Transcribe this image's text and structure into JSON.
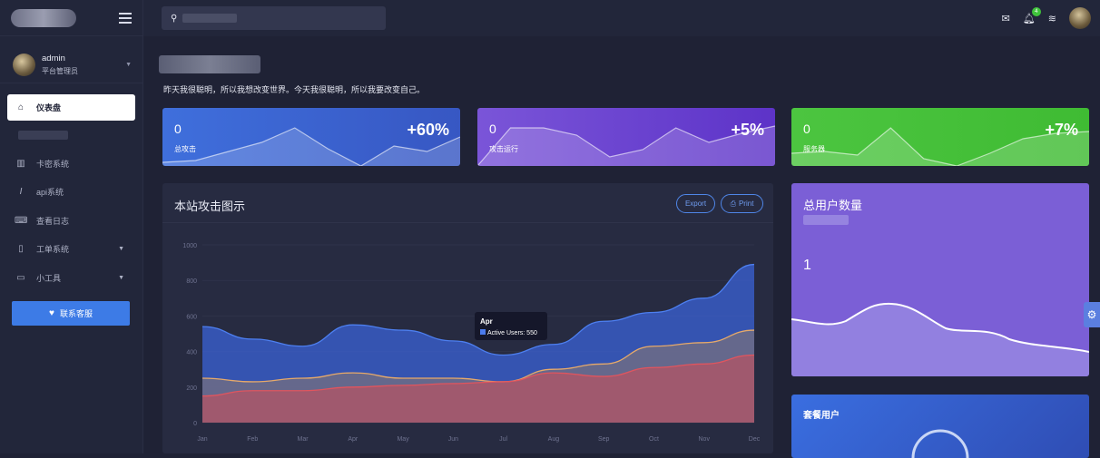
{
  "sidebar": {
    "user": {
      "name": "admin",
      "role": "平台管理员"
    },
    "items": [
      {
        "label": "仪表盘",
        "icon": "home-icon"
      },
      {
        "label": "卡密系统",
        "icon": "bar-chart-icon"
      },
      {
        "label": "api系统",
        "icon": "italic-icon"
      },
      {
        "label": "查看日志",
        "icon": "keyboard-icon"
      },
      {
        "label": "工单系统",
        "icon": "tablet-icon"
      },
      {
        "label": "小工具",
        "icon": "monitor-icon"
      }
    ],
    "contact_label": "联系客服"
  },
  "topbar": {
    "notif_count": "4"
  },
  "main": {
    "motto": "昨天我很聪明，所以我想改变世界。今天我很聪明，所以我要改变自己。",
    "cards": [
      {
        "value": "0",
        "label": "总攻击",
        "pct": "+60%",
        "color": "#3f6fdc"
      },
      {
        "value": "0",
        "label": "攻击运行",
        "pct": "+5%",
        "color": "#6a44cf"
      },
      {
        "value": "0",
        "label": "服务器",
        "pct": "+7%",
        "color": "#47c13d"
      }
    ],
    "chart_title": "本站攻击图示",
    "export_label": "Export",
    "print_label": "Print",
    "user_card": {
      "title": "总用户数量",
      "value": "1"
    },
    "package_card": {
      "title": "套餐用户"
    }
  },
  "chart_data": {
    "type": "area",
    "categories": [
      "Jan",
      "Feb",
      "Mar",
      "Apr",
      "May",
      "Jun",
      "Jul",
      "Aug",
      "Sep",
      "Oct",
      "Nov",
      "Dec"
    ],
    "ylim": [
      0,
      1000
    ],
    "yticks": [
      0,
      200,
      400,
      600,
      800,
      1000
    ],
    "series": [
      {
        "name": "Active Users",
        "color": "#4b7bec",
        "values": [
          540,
          470,
          430,
          550,
          520,
          460,
          380,
          440,
          570,
          620,
          700,
          890
        ]
      },
      {
        "values": [
          250,
          230,
          250,
          280,
          250,
          250,
          230,
          300,
          330,
          430,
          450,
          520
        ]
      },
      {
        "values": [
          150,
          180,
          180,
          200,
          210,
          220,
          230,
          280,
          260,
          310,
          330,
          380
        ]
      }
    ],
    "tooltip": {
      "title": "Apr",
      "text": "Active Users: 550"
    }
  }
}
